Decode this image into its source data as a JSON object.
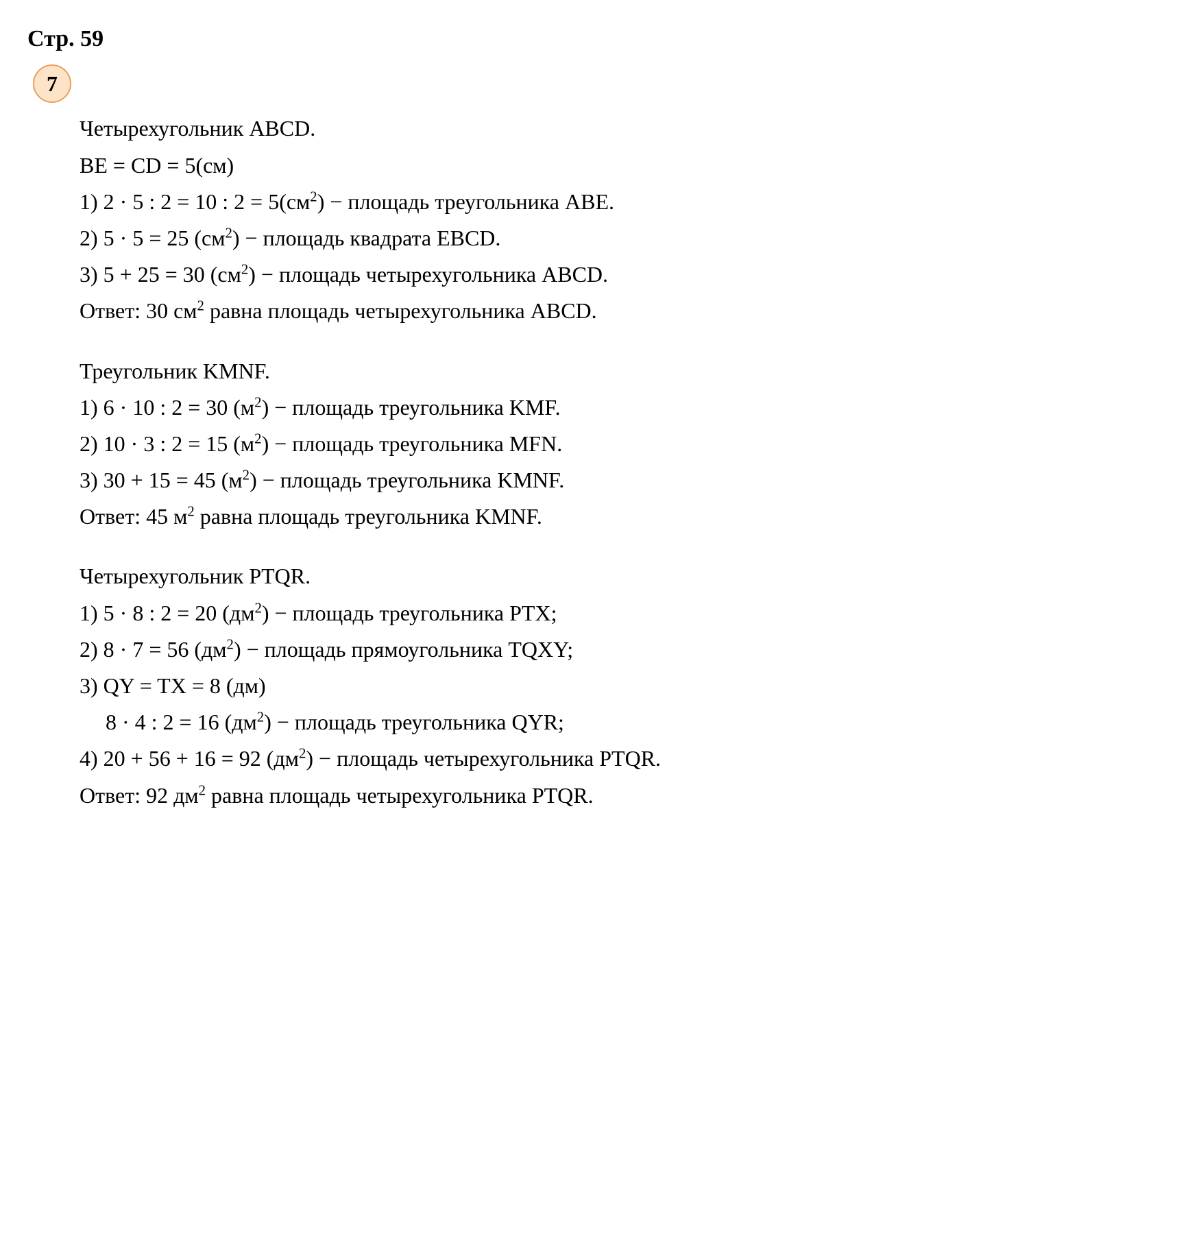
{
  "page_header": "Стр. 59",
  "problem_number": "7",
  "blocks": [
    {
      "title": "Четырехугольник ABCD.",
      "lines": [
        {
          "text": "BE = CD = 5(см)"
        },
        {
          "prefix": "1) ",
          "math": "2 · 5 : 2 = 10 : 2 = 5(см",
          "sup": "2",
          "suffix": ") − площадь треугольника ABE."
        },
        {
          "prefix": "2) ",
          "math": "5 · 5 = 25 (см",
          "sup": "2",
          "suffix": ") − площадь квадрата EBCD."
        },
        {
          "prefix": "3) ",
          "math": "5 + 25 = 30 (см",
          "sup": "2",
          "suffix": ") − площадь четырехугольника ABCD."
        }
      ],
      "answer": {
        "prefix": "Ответ: 30 см",
        "sup": "2",
        "suffix": " равна площадь четырехугольника ABCD."
      }
    },
    {
      "title": "Треугольник KMNF.",
      "lines": [
        {
          "prefix": "1) ",
          "math": "6 · 10 : 2 = 30 (м",
          "sup": "2",
          "suffix": ") − площадь треугольника KMF."
        },
        {
          "prefix": "2) ",
          "math": "10 · 3 : 2 = 15 (м",
          "sup": "2",
          "suffix": ") − площадь треугольника MFN."
        },
        {
          "prefix": "3) ",
          "math": "30 + 15 = 45 (м",
          "sup": "2",
          "suffix": ") − площадь треугольника KMNF."
        }
      ],
      "answer": {
        "prefix": "Ответ: 45 м",
        "sup": "2",
        "suffix": " равна площадь треугольника KMNF."
      }
    },
    {
      "title": "Четырехугольник PTQR.",
      "lines": [
        {
          "prefix": "1) ",
          "math": "5 · 8 : 2 = 20 (дм",
          "sup": "2",
          "suffix": ") − площадь треугольника PTX;"
        },
        {
          "prefix": "2) ",
          "math": "8 · 7 = 56 (дм",
          "sup": "2",
          "suffix": ") − площадь прямоугольника TQXY;"
        },
        {
          "prefix": "3) ",
          "text": "QY = TX = 8 (дм)"
        },
        {
          "prefix": "",
          "indent": true,
          "math": "8 · 4 : 2 = 16 (дм",
          "sup": "2",
          "suffix": ") − площадь треугольника QYR;"
        },
        {
          "prefix": "4) ",
          "math": "20 + 56 + 16 = 92 (дм",
          "sup": "2",
          "suffix": ") − площадь четырехугольника PTQR."
        }
      ],
      "answer": {
        "prefix": "Ответ: 92 дм",
        "sup": "2",
        "suffix": " равна площадь четырехугольника PTQR."
      }
    }
  ]
}
